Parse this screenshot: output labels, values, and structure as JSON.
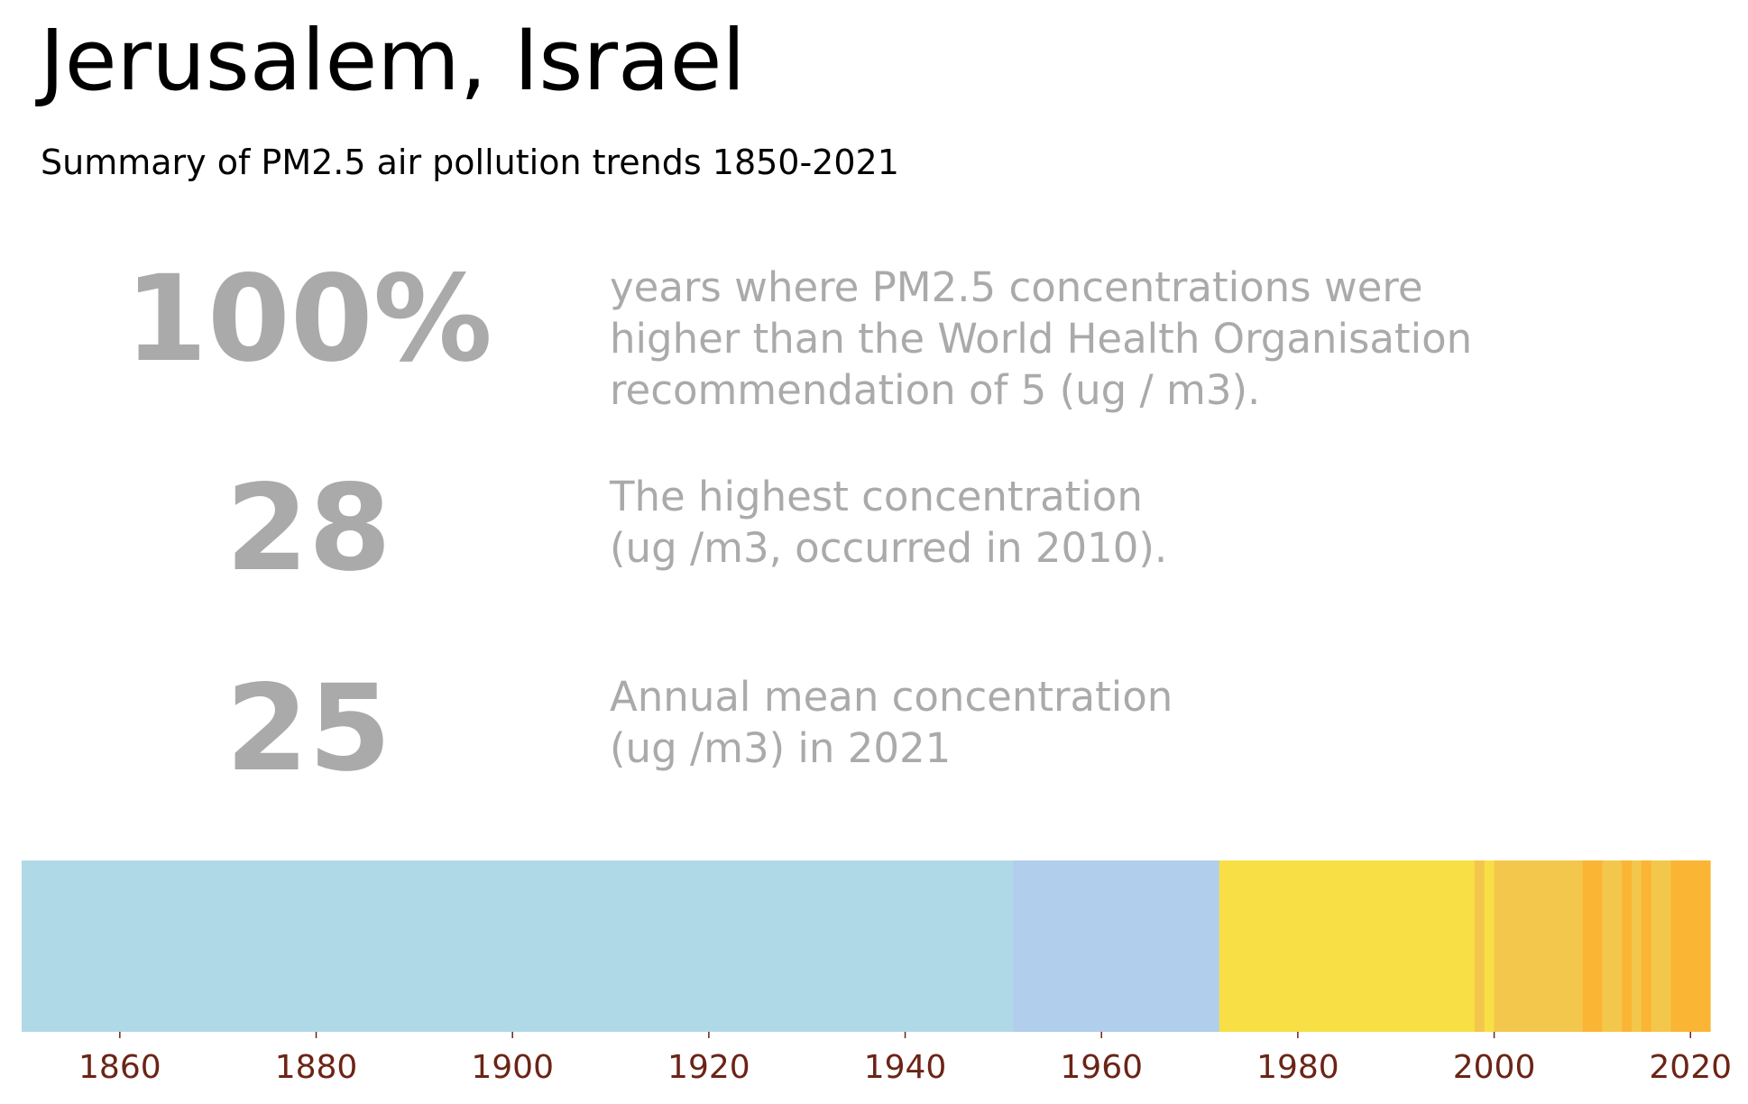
{
  "header": {
    "title": "Jerusalem, Israel",
    "subtitle": "Summary of PM2.5 air pollution trends 1850-2021"
  },
  "stats": [
    {
      "value": "100%",
      "lines": [
        "years where PM2.5 concentrations were",
        "higher than the World Health Organisation",
        "recommendation of 5 (ug / m3)."
      ]
    },
    {
      "value": "28",
      "lines": [
        "The highest concentration",
        "(ug /m3, occurred in 2010)."
      ]
    },
    {
      "value": "25",
      "lines": [
        "Annual mean concentration",
        "(ug /m3) in 2021"
      ]
    }
  ],
  "chart_data": {
    "type": "heatmap",
    "title": "",
    "xlabel": "",
    "ylabel": "",
    "xlim": [
      1850,
      2022
    ],
    "x_ticks": [
      1860,
      1880,
      1900,
      1920,
      1940,
      1960,
      1980,
      2000,
      2020
    ],
    "grid": false,
    "legend": "none",
    "segments": [
      {
        "start": 1850,
        "end": 1951,
        "color": "#b0d9e8"
      },
      {
        "start": 1951,
        "end": 1972,
        "color": "#b1ceec"
      },
      {
        "start": 1972,
        "end": 1998,
        "color": "#f8df46"
      },
      {
        "start": 1998,
        "end": 1999,
        "color": "#f3c74b"
      },
      {
        "start": 1999,
        "end": 2000,
        "color": "#f8df46"
      },
      {
        "start": 2000,
        "end": 2009,
        "color": "#f3c74b"
      },
      {
        "start": 2009,
        "end": 2011,
        "color": "#fbb534"
      },
      {
        "start": 2011,
        "end": 2013,
        "color": "#f3c74b"
      },
      {
        "start": 2013,
        "end": 2014,
        "color": "#fbb534"
      },
      {
        "start": 2014,
        "end": 2015,
        "color": "#f3c74b"
      },
      {
        "start": 2015,
        "end": 2016,
        "color": "#fbb534"
      },
      {
        "start": 2016,
        "end": 2018,
        "color": "#f3c74b"
      },
      {
        "start": 2018,
        "end": 2022,
        "color": "#fbb534"
      }
    ]
  }
}
